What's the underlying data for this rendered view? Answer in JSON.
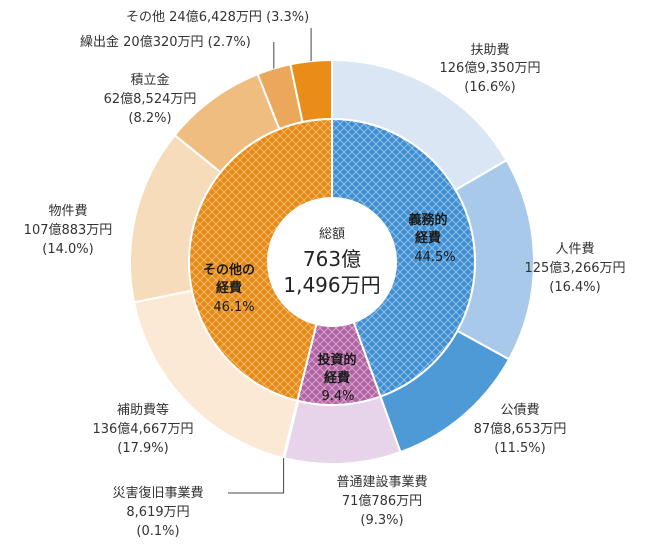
{
  "chart_data": {
    "type": "pie",
    "title": "総額",
    "total_lines": [
      "763億",
      "1,496万円"
    ],
    "inner_ring": [
      {
        "name": "義務的経費",
        "label_lines": [
          "義務的",
          "経費"
        ],
        "percent": 44.5,
        "percent_label": "44.5%",
        "color": "#4b93d2"
      },
      {
        "name": "投資的経費",
        "label_lines": [
          "投資的",
          "経費"
        ],
        "percent": 9.4,
        "percent_label": "9.4%",
        "color": "#b467a6"
      },
      {
        "name": "その他の経費",
        "label_lines": [
          "その他の",
          "経費"
        ],
        "percent": 46.1,
        "percent_label": "46.1%",
        "color": "#e98d18"
      }
    ],
    "outer_ring": [
      {
        "name": "扶助費",
        "amount": "126億9,350万円",
        "percent": 16.6,
        "percent_label": "(16.6%)",
        "color": "#dbe6f5"
      },
      {
        "name": "人件費",
        "amount": "125億3,266万円",
        "percent": 16.4,
        "percent_label": "(16.4%)",
        "color": "#a9c9ea"
      },
      {
        "name": "公債費",
        "amount": "87億8,653万円",
        "percent": 11.5,
        "percent_label": "(11.5%)",
        "color": "#4e9ad7"
      },
      {
        "name": "普通建設事業費",
        "amount": "71億786万円",
        "percent": 9.3,
        "percent_label": "(9.3%)",
        "color": "#e7d4ea"
      },
      {
        "name": "災害復旧事業費",
        "amount": "8,619万円",
        "percent": 0.1,
        "percent_label": "(0.1%)",
        "color": "#b467a6"
      },
      {
        "name": "補助費等",
        "amount": "136億4,667万円",
        "percent": 17.9,
        "percent_label": "(17.9%)",
        "color": "#fbe9d5"
      },
      {
        "name": "物件費",
        "amount": "107億883万円",
        "percent": 14.0,
        "percent_label": "(14.0%)",
        "color": "#f7dcbb"
      },
      {
        "name": "積立金",
        "amount": "62億8,524万円",
        "percent": 8.2,
        "percent_label": "(8.2%)",
        "color": "#f0bd80"
      },
      {
        "name": "繰出金",
        "amount": "20億320万円",
        "percent": 2.7,
        "percent_label": "(2.7%)",
        "color": "#eba75a"
      },
      {
        "name": "その他",
        "amount": "24億6,428万円",
        "percent": 3.3,
        "percent_label": "(3.3%)",
        "color": "#e98d18"
      }
    ]
  }
}
